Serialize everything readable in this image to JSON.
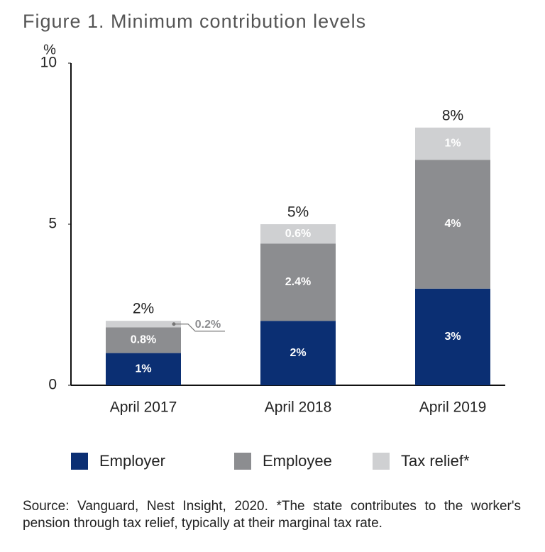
{
  "chart_data": {
    "type": "stacked_bar",
    "title": "Figure 1. Minimum contribution levels",
    "y_label": "%",
    "categories": [
      "April 2017",
      "April 2018",
      "April 2019"
    ],
    "series": [
      {
        "name": "Employer",
        "color": "#0b2f73",
        "values": [
          1,
          2,
          3
        ],
        "value_labels": [
          "1%",
          "2%",
          "3%"
        ]
      },
      {
        "name": "Employee",
        "color": "#8c8d90",
        "values": [
          0.8,
          2.4,
          4
        ],
        "value_labels": [
          "0.8%",
          "2.4%",
          "4%"
        ]
      },
      {
        "name": "Tax relief*",
        "color": "#cfd0d2",
        "values": [
          0.2,
          0.6,
          1
        ],
        "value_labels": [
          "0.2%",
          "0.6%",
          "1%"
        ]
      }
    ],
    "totals": [
      2,
      5,
      8
    ],
    "total_labels": [
      "2%",
      "5%",
      "8%"
    ],
    "ylim": [
      0,
      10
    ],
    "yticks": [
      0,
      5,
      10
    ],
    "grid": false,
    "legend": "bottom",
    "note": "Source: Vanguard, Nest Insight, 2020. *The state contributes to the worker's pension through tax relief, typically at their marginal tax rate."
  }
}
